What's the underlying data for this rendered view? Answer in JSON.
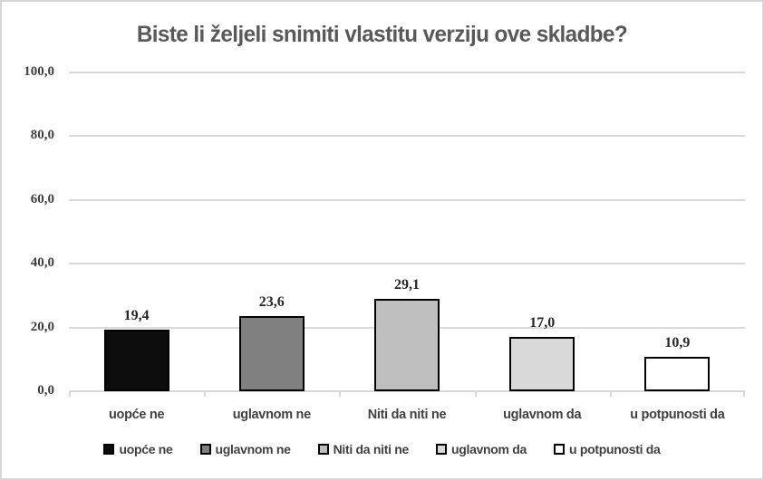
{
  "chart_data": {
    "type": "bar",
    "title": "Biste li željeli snimiti vlastitu verziju ove skladbe?",
    "categories": [
      "uopće ne",
      "uglavnom ne",
      "Niti da niti ne",
      "uglavnom da",
      "u potpunosti da"
    ],
    "values": [
      19.4,
      23.6,
      29.1,
      17.0,
      10.9
    ],
    "value_labels": [
      "19,4",
      "23,6",
      "29,1",
      "17,0",
      "10,9"
    ],
    "bar_colors": [
      "#0d0d0d",
      "#808080",
      "#bfbfbf",
      "#d9d9d9",
      "#ffffff"
    ],
    "bar_border_color": "#000000",
    "xlabel": "",
    "ylabel": "",
    "ylim": [
      0,
      100
    ],
    "yticks": [
      {
        "value": 0,
        "label": "0,0"
      },
      {
        "value": 20,
        "label": "20,0"
      },
      {
        "value": 40,
        "label": "40,0"
      },
      {
        "value": 60,
        "label": "60,0"
      },
      {
        "value": 80,
        "label": "80,0"
      },
      {
        "value": 100,
        "label": "100,0"
      }
    ],
    "grid": "horizontal",
    "gridline_color": "#d9d9d9",
    "legend_position": "bottom",
    "legend_entries": [
      "uopće ne",
      "uglavnom ne",
      "Niti da niti ne",
      "uglavnom da",
      "u potpunosti da"
    ],
    "title_color": "#595959",
    "label_color": "#404040"
  }
}
